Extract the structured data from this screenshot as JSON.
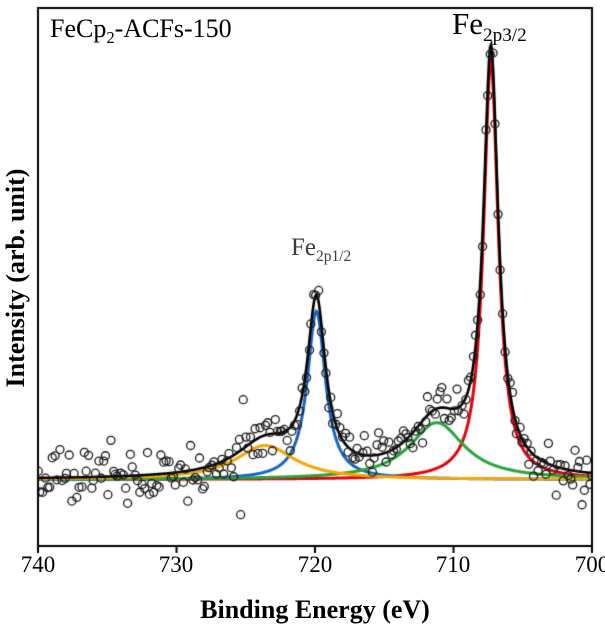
{
  "chart_data": {
    "type": "scatter",
    "description": "XPS Fe 2p spectrum with raw data points and peak-fit components",
    "title_annotation": {
      "main": "FeCp",
      "sub": "2",
      "rest": "-ACFs-150"
    },
    "xlabel": "Binding Energy (eV)",
    "ylabel": "Intensity (arb. unit)",
    "x_axis": {
      "min": 700,
      "max": 740,
      "reversed": true,
      "ticks": [
        740,
        730,
        720,
        710,
        700
      ]
    },
    "y_axis": {
      "ticks": [],
      "note": "intensity in arbitrary units, no tick labels"
    },
    "legend": "none",
    "grid": false,
    "peak_annotations": [
      {
        "main": "Fe",
        "sub": "2p3/2"
      },
      {
        "main": "Fe",
        "sub": "2p1/2"
      }
    ],
    "baseline": 0.045,
    "fit_components": [
      {
        "name": "Fe 2p3/2 main peak",
        "color": "#e8000b",
        "center": 707.3,
        "amplitude": 0.92,
        "width": 0.65
      },
      {
        "name": "Fe 2p1/2 main peak",
        "color": "#1565c0",
        "center": 719.9,
        "amplitude": 0.37,
        "width": 0.8
      },
      {
        "name": "Fe 2p3/2 satellite",
        "color": "#27a639",
        "center": 711.2,
        "amplitude": 0.125,
        "width": 2.4
      },
      {
        "name": "Fe 2p1/2 satellite",
        "color": "#f5a800",
        "center": 723.6,
        "amplitude": 0.075,
        "width": 2.6
      }
    ],
    "envelope_color": "#000000",
    "scatter": {
      "marker": "open-circle",
      "color": "#1a1a1a",
      "n_points": 230,
      "noise_sigma": 0.022,
      "left_region_noise_boost": 1.25,
      "outlier_chance": 0.04,
      "seed": 42
    }
  }
}
